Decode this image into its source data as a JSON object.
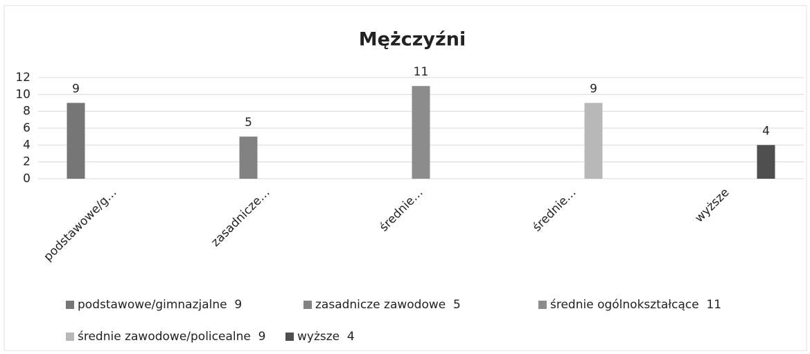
{
  "chart_data": {
    "type": "bar",
    "title": "Mężczyźni",
    "categories": [
      "podstawowe/g…",
      "zasadnicze…",
      "średnie…",
      "średnie…",
      "wyższe"
    ],
    "series": [
      {
        "name": "podstawowe/gimnazjalne  9",
        "color": "#767676",
        "values": [
          9,
          null,
          null,
          null,
          null
        ]
      },
      {
        "name": "zasadnicze zawodowe  5",
        "color": "#828282",
        "values": [
          null,
          5,
          null,
          null,
          null
        ]
      },
      {
        "name": "średnie ogólnokształcące  11",
        "color": "#8c8c8c",
        "values": [
          null,
          null,
          11,
          null,
          null
        ]
      },
      {
        "name": "średnie zawodowe/policealne  9",
        "color": "#b8b8b8",
        "values": [
          null,
          null,
          null,
          9,
          null
        ]
      },
      {
        "name": "wyższe  4",
        "color": "#4e4e4e",
        "values": [
          null,
          null,
          null,
          null,
          4
        ]
      }
    ],
    "ylim": [
      0,
      12
    ],
    "yticks": [
      0,
      2,
      4,
      6,
      8,
      10,
      12
    ],
    "grid": true
  }
}
